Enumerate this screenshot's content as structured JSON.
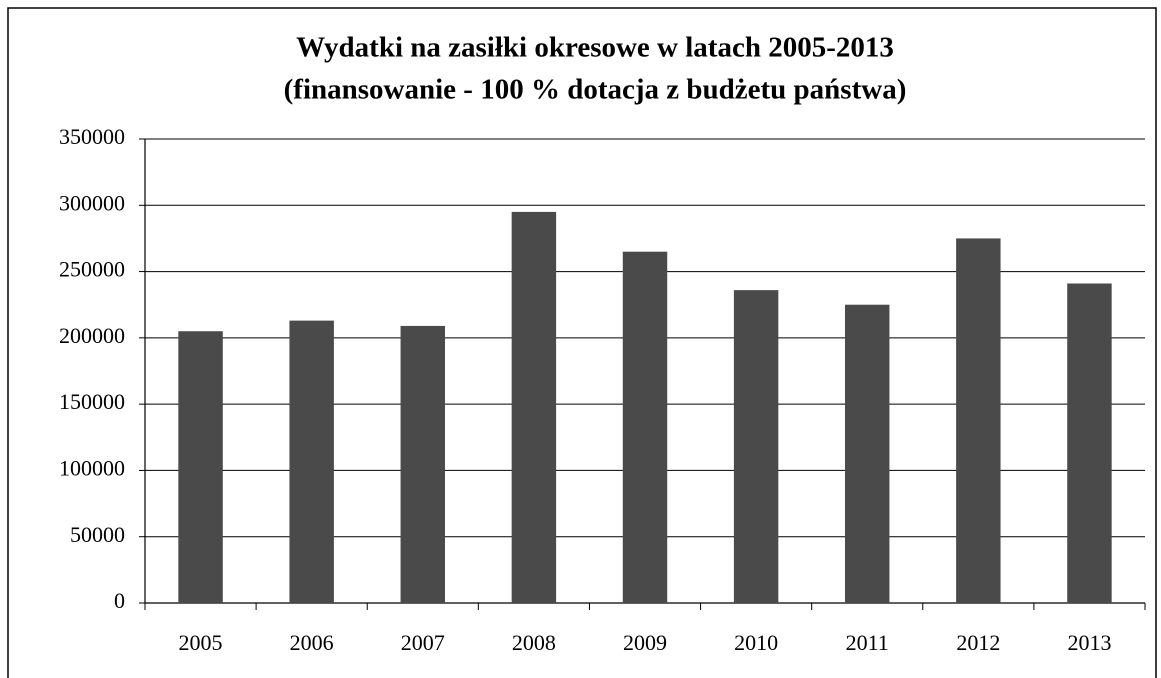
{
  "chart_data": {
    "type": "bar",
    "title": "Wydatki na zasiłki okresowe w latach 2005-2013",
    "subtitle": "(finansowanie - 100 % dotacja z budżetu państwa)",
    "categories": [
      "2005",
      "2006",
      "2007",
      "2008",
      "2009",
      "2010",
      "2011",
      "2012",
      "2013"
    ],
    "values": [
      205000,
      213000,
      209000,
      295000,
      265000,
      236000,
      225000,
      275000,
      241000
    ],
    "color": "#4a4a4a",
    "ylim": [
      0,
      350000
    ],
    "yticks": [
      0,
      50000,
      100000,
      150000,
      200000,
      250000,
      300000,
      350000
    ],
    "grid": true
  }
}
